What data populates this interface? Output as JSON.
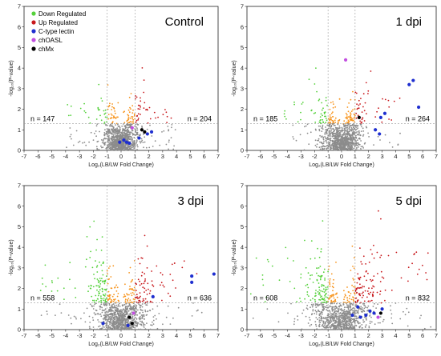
{
  "legend": [
    {
      "label": "Down Regulated",
      "color": "#55d13b"
    },
    {
      "label": "Up Regulated",
      "color": "#c8181c"
    },
    {
      "label": "C-type lectin",
      "color": "#1f2fd0"
    },
    {
      "label": "chOASL",
      "color": "#c24fe0"
    },
    {
      "label": "chMx",
      "color": "#000000"
    }
  ],
  "colors": {
    "not_significant": "#8c8c8c",
    "moderate": "#f7941d",
    "center": "#ffffff",
    "down": "#55d13b",
    "up": "#c8181c",
    "lectin": "#1f2fd0",
    "oasl": "#c24fe0",
    "mx": "#000000",
    "threshold_line": "#999999"
  },
  "chart_data": [
    {
      "type": "scatter",
      "title": "Control",
      "xlabel": "Log₂(LB/LW Fold Change)",
      "ylabel": "-log₁₀(P-value)",
      "xlim": [
        -7,
        7
      ],
      "ylim": [
        0,
        7
      ],
      "x_ticks": [
        "-7",
        "-6",
        "-5",
        "-4",
        "-3",
        "-2",
        "-1",
        "0",
        "1",
        "2",
        "3",
        "4",
        "5",
        "6",
        "7"
      ],
      "y_ticks": [
        "0",
        "1",
        "2",
        "3",
        "4",
        "5",
        "6",
        "7"
      ],
      "fold_change_thresholds": [
        -1,
        1
      ],
      "pvalue_threshold": 1.3,
      "n_down_label": "n = 147",
      "n_up_label": "n = 204",
      "lectin_points": [
        [
          0.2,
          0.5
        ],
        [
          0.4,
          0.4
        ],
        [
          0.6,
          0.35
        ],
        [
          1.3,
          0.6
        ],
        [
          1.9,
          0.8
        ],
        [
          2.2,
          0.9
        ],
        [
          -0.1,
          0.4
        ]
      ],
      "oasl_points": [
        [
          0.8,
          1.1
        ]
      ],
      "mx_points": [
        [
          1.5,
          1.0
        ],
        [
          1.7,
          0.9
        ]
      ]
    },
    {
      "type": "scatter",
      "title": "1 dpi",
      "xlabel": "Log₂(LB/LW Fold Change)",
      "ylabel": "-log₁₀(P-value)",
      "xlim": [
        -7,
        7
      ],
      "ylim": [
        0,
        7
      ],
      "x_ticks": [
        "-7",
        "-6",
        "-5",
        "-4",
        "-3",
        "-2",
        "-1",
        "0",
        "1",
        "2",
        "3",
        "4",
        "5",
        "6",
        "7"
      ],
      "y_ticks": [
        "0",
        "1",
        "2",
        "3",
        "4",
        "5",
        "6",
        "7"
      ],
      "fold_change_thresholds": [
        -1,
        1
      ],
      "pvalue_threshold": 1.3,
      "n_down_label": "n = 185",
      "n_up_label": "n = 264",
      "lectin_points": [
        [
          5.3,
          3.4
        ],
        [
          5.0,
          3.2
        ],
        [
          5.7,
          2.1
        ],
        [
          3.2,
          1.8
        ],
        [
          2.9,
          1.6
        ],
        [
          2.5,
          1.0
        ],
        [
          2.8,
          0.8
        ]
      ],
      "oasl_points": [
        [
          0.3,
          4.4
        ]
      ],
      "mx_points": [
        [
          1.3,
          1.6
        ]
      ]
    },
    {
      "type": "scatter",
      "title": "3 dpi",
      "xlabel": "Log₂(LB/LW Fold Change)",
      "ylabel": "-log₁₀(P-value)",
      "xlim": [
        -7,
        7
      ],
      "ylim": [
        0,
        7
      ],
      "x_ticks": [
        "-7",
        "-6",
        "-5",
        "-4",
        "-3",
        "-2",
        "-1",
        "0",
        "1",
        "2",
        "3",
        "4",
        "5",
        "6",
        "7"
      ],
      "y_ticks": [
        "0",
        "1",
        "2",
        "3",
        "4",
        "5",
        "6",
        "7"
      ],
      "fold_change_thresholds": [
        -1,
        1
      ],
      "pvalue_threshold": 1.3,
      "n_down_label": "n = 558",
      "n_up_label": "n = 636",
      "lectin_points": [
        [
          5.1,
          2.6
        ],
        [
          5.1,
          2.3
        ],
        [
          6.7,
          2.7
        ],
        [
          2.3,
          1.6
        ],
        [
          -1.3,
          0.3
        ],
        [
          0.5,
          0.2
        ]
      ],
      "oasl_points": [
        [
          0.9,
          0.8
        ]
      ],
      "mx_points": [
        [
          0.6,
          0.6
        ],
        [
          0.8,
          0.3
        ]
      ]
    },
    {
      "type": "scatter",
      "title": "5 dpi",
      "xlabel": "Log₂(LB/LW Fold Change)",
      "ylabel": "-log₁₀(P-value)",
      "xlim": [
        -7,
        7
      ],
      "ylim": [
        0,
        7
      ],
      "x_ticks": [
        "-7",
        "-6",
        "-5",
        "-4",
        "-3",
        "-2",
        "-1",
        "0",
        "1",
        "2",
        "3",
        "4",
        "5",
        "6",
        "7"
      ],
      "y_ticks": [
        "0",
        "1",
        "2",
        "3",
        "4",
        "5",
        "6",
        "7"
      ],
      "fold_change_thresholds": [
        -1,
        1
      ],
      "pvalue_threshold": 1.3,
      "n_down_label": "n = 608",
      "n_up_label": "n = 832",
      "lectin_points": [
        [
          0.8,
          0.7
        ],
        [
          1.4,
          0.6
        ],
        [
          1.8,
          0.7
        ],
        [
          2.1,
          0.9
        ],
        [
          2.4,
          0.8
        ],
        [
          1.2,
          1.1
        ],
        [
          3.0,
          1.0
        ]
      ],
      "oasl_points": [
        [
          2.7,
          0.6
        ]
      ],
      "mx_points": [
        [
          2.9,
          0.8
        ]
      ]
    }
  ]
}
